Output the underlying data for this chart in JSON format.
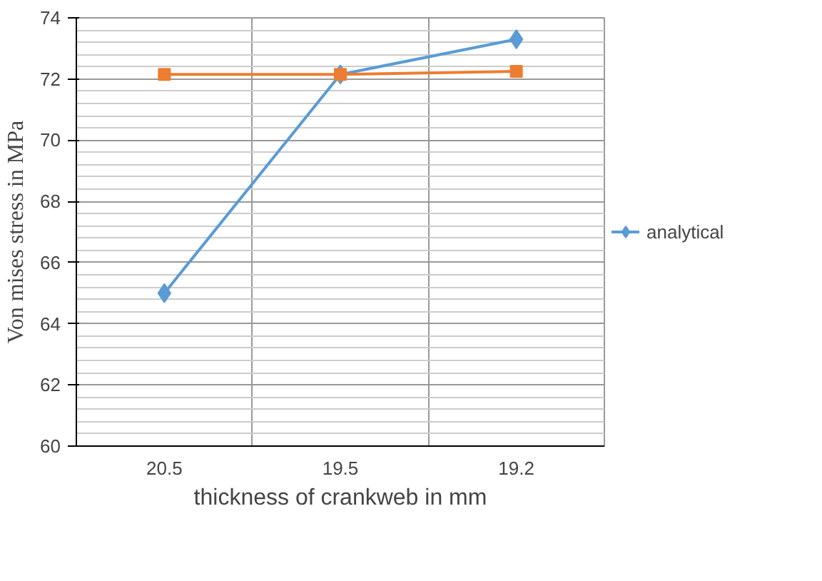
{
  "chart_data": {
    "type": "line",
    "xlabel": "thickness of crankweb in mm",
    "ylabel": "Von mises stress in MPa",
    "categories": [
      "20.5",
      "19.5",
      "19.2"
    ],
    "series": [
      {
        "name": "analytical",
        "color": "#5b9bd5",
        "values": [
          65.0,
          72.15,
          73.3
        ],
        "marker": "diamond"
      },
      {
        "color": "#ed7d31",
        "values": [
          72.15,
          72.15,
          72.25
        ],
        "marker": "square"
      }
    ],
    "ylim": [
      60,
      74
    ],
    "yticks": [
      60,
      62,
      64,
      66,
      68,
      70,
      72,
      74
    ],
    "grid": true,
    "legend": "right"
  }
}
